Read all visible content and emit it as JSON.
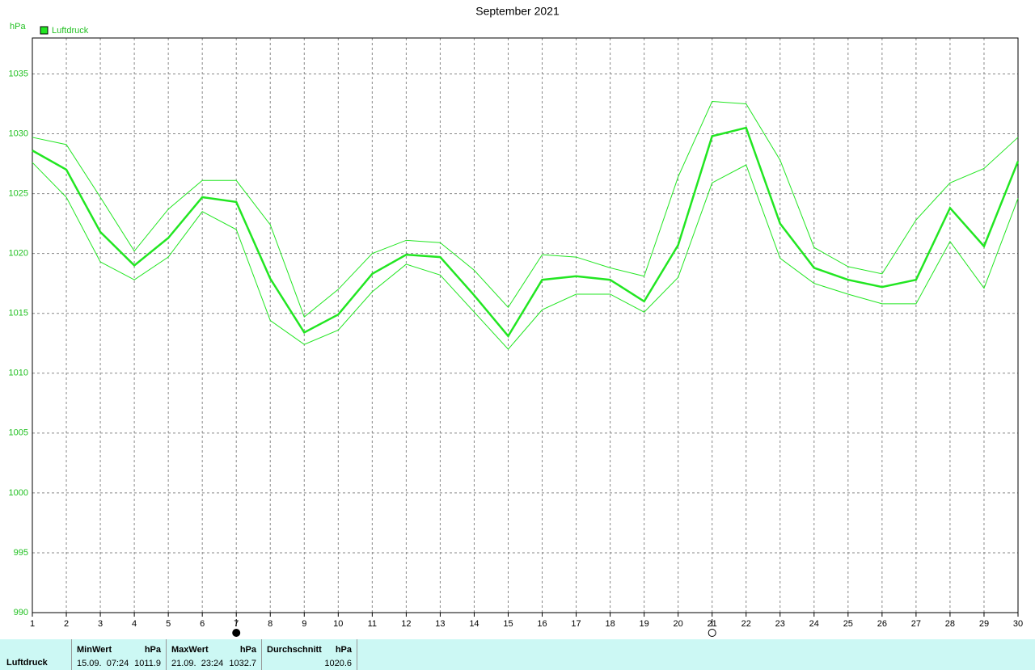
{
  "chart_data": {
    "type": "line",
    "title": "September 2021",
    "y_label": "hPa",
    "x": [
      1,
      2,
      3,
      4,
      5,
      6,
      7,
      8,
      9,
      10,
      11,
      12,
      13,
      14,
      15,
      16,
      17,
      18,
      19,
      20,
      21,
      22,
      23,
      24,
      25,
      26,
      27,
      28,
      29,
      30
    ],
    "xlim": [
      1,
      30
    ],
    "xticks": [
      1,
      2,
      3,
      4,
      5,
      6,
      7,
      8,
      9,
      10,
      11,
      12,
      13,
      14,
      15,
      16,
      17,
      18,
      19,
      20,
      21,
      22,
      23,
      24,
      25,
      26,
      27,
      28,
      29,
      30
    ],
    "ylim": [
      990,
      1038
    ],
    "yticks": [
      990,
      995,
      1000,
      1005,
      1010,
      1015,
      1020,
      1025,
      1030,
      1035
    ],
    "grid": true,
    "legend": "top-left",
    "series": [
      {
        "name": "Luftdruck",
        "color": "#22e622",
        "width": 2.5,
        "values": [
          1028.6,
          1027.0,
          1021.8,
          1019.0,
          1021.3,
          1024.7,
          1024.3,
          1017.9,
          1013.4,
          1014.9,
          1018.3,
          1019.9,
          1019.7,
          1016.5,
          1013.1,
          1017.8,
          1018.1,
          1017.8,
          1016.0,
          1020.7,
          1029.8,
          1030.5,
          1022.5,
          1018.8,
          1017.8,
          1017.2,
          1017.8,
          1023.8,
          1020.6,
          1027.7
        ]
      },
      {
        "color": "#22e622",
        "width": 1,
        "values": [
          1029.7,
          1029.1,
          1024.7,
          1020.2,
          1023.7,
          1026.1,
          1026.1,
          1022.4,
          1014.7,
          1017.0,
          1020.0,
          1021.1,
          1020.9,
          1018.6,
          1015.5,
          1019.9,
          1019.7,
          1018.8,
          1018.1,
          1026.4,
          1032.7,
          1032.5,
          1027.8,
          1020.5,
          1018.9,
          1018.3,
          1022.8,
          1025.9,
          1027.1,
          1029.7
        ]
      },
      {
        "color": "#22e622",
        "width": 1,
        "values": [
          1027.6,
          1024.7,
          1019.3,
          1017.8,
          1019.7,
          1023.5,
          1022.0,
          1014.4,
          1012.4,
          1013.6,
          1016.8,
          1019.1,
          1018.2,
          1015.1,
          1012.0,
          1015.3,
          1016.6,
          1016.6,
          1015.1,
          1018.0,
          1025.9,
          1027.4,
          1019.6,
          1017.5,
          1016.6,
          1015.8,
          1015.8,
          1021.0,
          1017.1,
          1024.6
        ]
      }
    ],
    "markers": [
      {
        "x": 7,
        "filled": true
      },
      {
        "x": 21,
        "filled": false
      }
    ]
  },
  "stats": {
    "name": "Luftdruck",
    "columns": [
      {
        "header": "MinWert",
        "unit": "hPa",
        "time": "15.09.  07:24",
        "value": 1011.9
      },
      {
        "header": "MaxWert",
        "unit": "hPa",
        "time": "21.09.  23:24",
        "value": 1032.7
      },
      {
        "header": "Durchschnitt",
        "unit": "hPa",
        "value": 1020.6
      }
    ]
  }
}
